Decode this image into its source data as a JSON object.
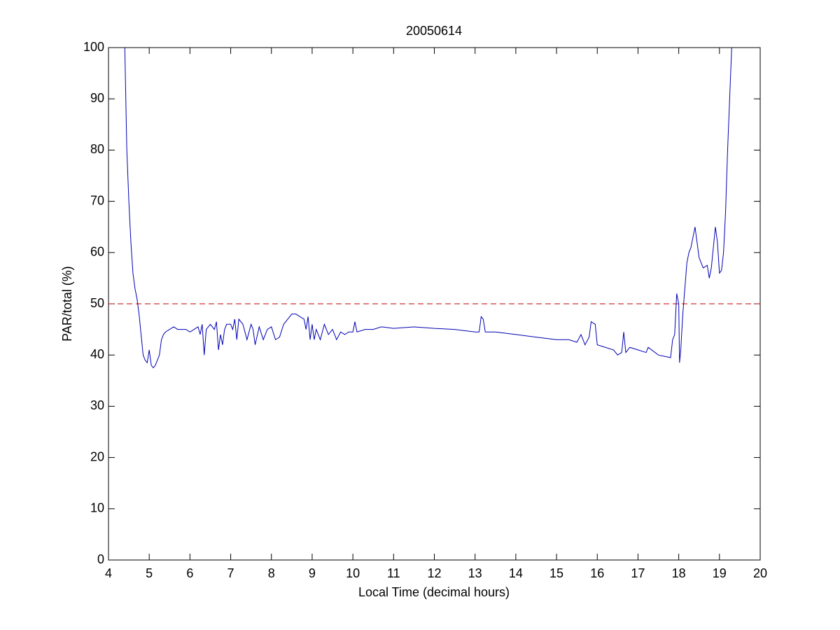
{
  "chart_data": {
    "type": "line",
    "title": "20050614",
    "x_label": "Local Time (decimal hours)",
    "y_label": "PAR/total (%)",
    "x": [
      4.4,
      4.45,
      4.5,
      4.55,
      4.6,
      4.65,
      4.7,
      4.75,
      4.8,
      4.85,
      4.9,
      4.95,
      5.0,
      5.05,
      5.1,
      5.15,
      5.2,
      5.25,
      5.3,
      5.35,
      5.4,
      5.5,
      5.6,
      5.7,
      5.8,
      5.9,
      6.0,
      6.1,
      6.2,
      6.25,
      6.3,
      6.35,
      6.4,
      6.5,
      6.6,
      6.65,
      6.7,
      6.75,
      6.8,
      6.85,
      6.9,
      7.0,
      7.05,
      7.1,
      7.15,
      7.2,
      7.3,
      7.4,
      7.5,
      7.55,
      7.6,
      7.7,
      7.8,
      7.9,
      8.0,
      8.1,
      8.2,
      8.3,
      8.4,
      8.5,
      8.6,
      8.7,
      8.8,
      8.85,
      8.9,
      8.95,
      9.0,
      9.05,
      9.1,
      9.2,
      9.3,
      9.4,
      9.5,
      9.6,
      9.7,
      9.8,
      9.9,
      10.0,
      10.05,
      10.1,
      10.3,
      10.5,
      10.7,
      11.0,
      11.5,
      12.0,
      12.5,
      13.0,
      13.1,
      13.15,
      13.2,
      13.25,
      13.5,
      14.0,
      14.5,
      15.0,
      15.3,
      15.5,
      15.6,
      15.7,
      15.8,
      15.85,
      15.95,
      16.0,
      16.2,
      16.4,
      16.5,
      16.6,
      16.65,
      16.7,
      16.8,
      17.0,
      17.2,
      17.25,
      17.5,
      17.8,
      17.85,
      17.9,
      17.95,
      18.0,
      18.02,
      18.05,
      18.1,
      18.15,
      18.2,
      18.25,
      18.3,
      18.4,
      18.45,
      18.5,
      18.6,
      18.7,
      18.75,
      18.8,
      18.9,
      18.95,
      19.0,
      19.05,
      19.1,
      19.15,
      19.2,
      19.25,
      19.3
    ],
    "values": [
      100,
      80,
      70,
      62,
      56,
      53,
      51,
      48,
      44,
      40,
      39,
      38.5,
      41,
      38,
      37.5,
      38,
      39,
      40,
      43,
      44,
      44.5,
      45,
      45.5,
      45,
      45,
      45,
      44.5,
      45,
      45.5,
      44,
      46,
      40,
      45,
      46,
      45,
      46.5,
      41,
      44,
      42,
      45,
      46,
      46,
      45,
      47,
      43,
      47,
      46,
      43,
      46,
      45,
      42,
      45.5,
      43,
      45,
      45.5,
      43,
      43.5,
      46,
      47,
      48,
      48,
      47.5,
      47,
      45,
      47.5,
      43,
      46,
      43,
      45,
      43,
      46,
      44,
      45,
      43,
      44.5,
      44,
      44.5,
      44.5,
      46.5,
      44.5,
      45,
      45,
      45.5,
      45.2,
      45.5,
      45.2,
      45,
      44.5,
      44.5,
      47.5,
      47,
      44.5,
      44.5,
      44,
      43.5,
      43,
      43,
      42.5,
      44,
      42,
      43.5,
      46.5,
      46,
      42,
      41.5,
      41,
      40,
      40.5,
      44.5,
      40.5,
      41.5,
      41,
      40.5,
      41.5,
      40,
      39.5,
      43,
      44,
      52,
      50,
      38.5,
      41,
      48,
      53,
      58,
      60,
      61,
      65,
      62,
      59,
      57,
      57.5,
      55,
      57,
      65,
      62,
      56,
      56.5,
      60,
      68,
      80,
      90,
      100
    ],
    "color": "#0000b4",
    "reference_line": 50,
    "reference_color": "#c00000",
    "xlim": [
      4,
      20
    ],
    "xticks": [
      4,
      5,
      6,
      7,
      8,
      9,
      10,
      11,
      12,
      13,
      14,
      15,
      16,
      17,
      18,
      19,
      20
    ],
    "ylim": [
      0,
      100
    ],
    "yticks": [
      0,
      10,
      20,
      30,
      40,
      50,
      60,
      70,
      80,
      90,
      100
    ]
  }
}
